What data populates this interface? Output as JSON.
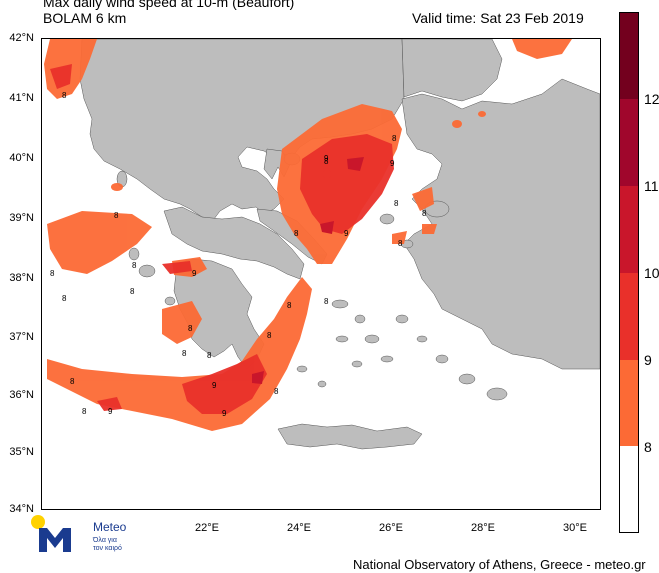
{
  "header": {
    "title_line1": "Max daily wind speed at 10-m (Beaufort)",
    "title_line2": "BOLAM 6 km",
    "valid_time": "Valid time: Sat 23 Feb 2019"
  },
  "axes": {
    "lat_labels": [
      "42°N",
      "41°N",
      "40°N",
      "39°N",
      "38°N",
      "37°N",
      "36°N",
      "35°N",
      "34°N"
    ],
    "lon_labels": [
      "22°E",
      "24°E",
      "26°E",
      "28°E",
      "30°E"
    ]
  },
  "colorbar": {
    "labels": [
      "8",
      "9",
      "10",
      "11",
      "12"
    ],
    "colors": [
      "#ffffff",
      "#fc6a35",
      "#e9302a",
      "#c9162b",
      "#a0062c",
      "#73001e"
    ]
  },
  "colors": {
    "land": "#bdbdbd",
    "sea": "#ffffff",
    "beaufort_8": "#fc6a35",
    "beaufort_9": "#e9302a",
    "beaufort_10": "#c9162b"
  },
  "contour_label": "8",
  "contour_label_9": "9",
  "logo": {
    "brand": "Meteo",
    "tagline_1": "Όλα για",
    "tagline_2": "τον καιρό"
  },
  "footer": {
    "credit": "National Observatory of Athens, Greece - meteo.gr"
  }
}
